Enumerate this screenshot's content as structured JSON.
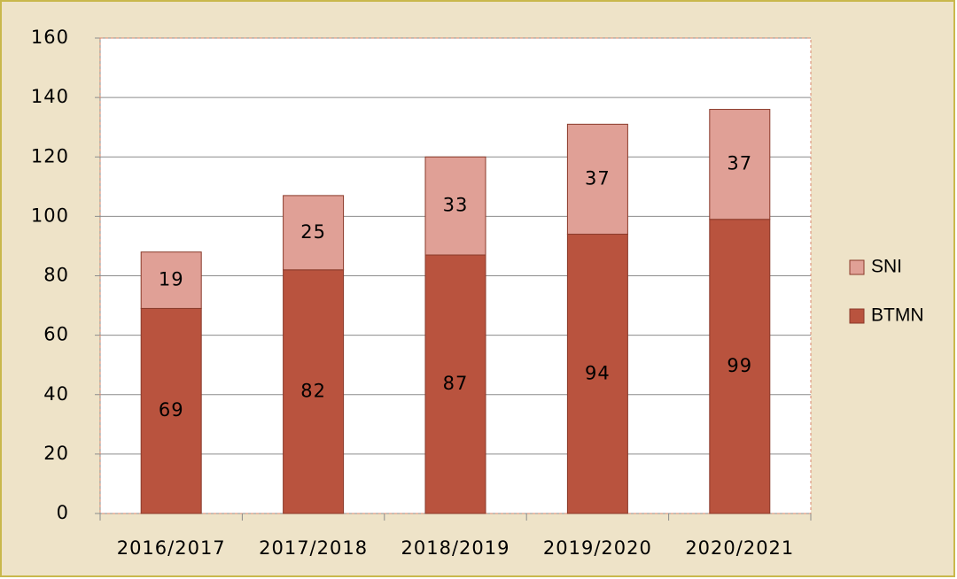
{
  "chart_data": {
    "type": "stacked_bar",
    "categories": [
      "2016/2017",
      "2017/2018",
      "2018/2019",
      "2019/2020",
      "2020/2021"
    ],
    "series": [
      {
        "name": "BTMN",
        "color": "#b9533e",
        "values": [
          69,
          82,
          87,
          94,
          99
        ]
      },
      {
        "name": "SNI",
        "color": "#e0a096",
        "values": [
          19,
          25,
          33,
          37,
          37
        ]
      }
    ],
    "ylim": [
      0,
      160
    ],
    "yticks": [
      0,
      20,
      40,
      60,
      80,
      100,
      120,
      140,
      160
    ],
    "grid": true,
    "legend": "right"
  }
}
